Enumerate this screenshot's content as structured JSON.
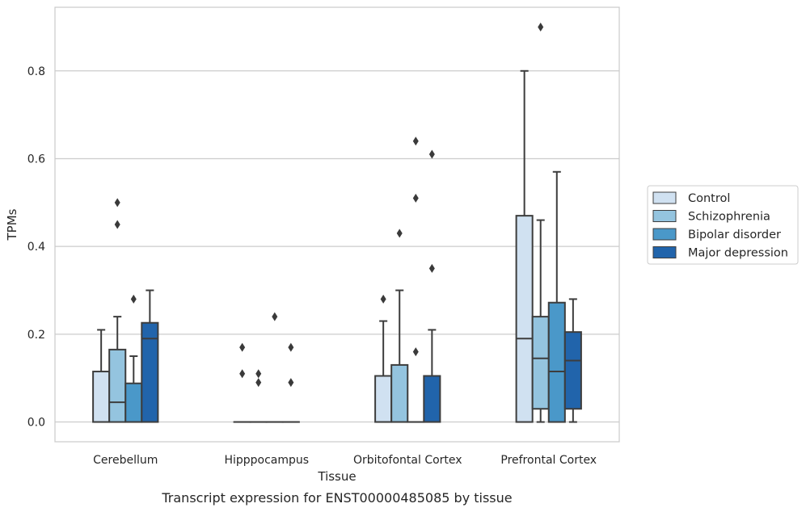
{
  "caption": "Transcript expression for ENST00000485085 by tissue",
  "chart_data": {
    "type": "box",
    "xlabel": "Tissue",
    "ylabel": "TPMs",
    "ylim": [
      -0.045,
      0.945
    ],
    "yticks": [
      0.0,
      0.2,
      0.4,
      0.6,
      0.8
    ],
    "ytick_labels": [
      "0.0",
      "0.2",
      "0.4",
      "0.6",
      "0.8"
    ],
    "grid": "horizontal",
    "legend_position": "right",
    "categories": [
      "Cerebellum",
      "Hipppocampus",
      "Orbitofontal Cortex",
      "Prefrontal Cortex"
    ],
    "series": [
      {
        "name": "Control",
        "color": "#d0e1f1",
        "boxes": [
          {
            "min": 0.0,
            "q1": 0.0,
            "median": 0.0,
            "q3": 0.115,
            "max": 0.21,
            "outliers": []
          },
          {
            "min": 0.0,
            "q1": 0.0,
            "median": 0.0,
            "q3": 0.0,
            "max": 0.0,
            "outliers": [
              0.17,
              0.11
            ]
          },
          {
            "min": 0.0,
            "q1": 0.0,
            "median": 0.0,
            "q3": 0.105,
            "max": 0.23,
            "outliers": [
              0.28
            ]
          },
          {
            "min": 0.0,
            "q1": 0.0,
            "median": 0.19,
            "q3": 0.47,
            "max": 0.8,
            "outliers": []
          }
        ]
      },
      {
        "name": "Schizophrenia",
        "color": "#94c4df",
        "boxes": [
          {
            "min": 0.0,
            "q1": 0.0,
            "median": 0.045,
            "q3": 0.165,
            "max": 0.24,
            "outliers": [
              0.5,
              0.45
            ]
          },
          {
            "min": 0.0,
            "q1": 0.0,
            "median": 0.0,
            "q3": 0.0,
            "max": 0.0,
            "outliers": [
              0.11,
              0.09
            ]
          },
          {
            "min": 0.0,
            "q1": 0.0,
            "median": 0.0,
            "q3": 0.13,
            "max": 0.3,
            "outliers": [
              0.43
            ]
          },
          {
            "min": 0.0,
            "q1": 0.03,
            "median": 0.145,
            "q3": 0.24,
            "max": 0.46,
            "outliers": [
              0.9
            ]
          }
        ]
      },
      {
        "name": "Bipolar disorder",
        "color": "#4a98c9",
        "boxes": [
          {
            "min": 0.0,
            "q1": 0.0,
            "median": 0.0,
            "q3": 0.088,
            "max": 0.15,
            "outliers": [
              0.28
            ]
          },
          {
            "min": 0.0,
            "q1": 0.0,
            "median": 0.0,
            "q3": 0.0,
            "max": 0.0,
            "outliers": [
              0.24
            ]
          },
          {
            "min": 0.0,
            "q1": 0.0,
            "median": 0.0,
            "q3": 0.0,
            "max": 0.0,
            "outliers": [
              0.64,
              0.51,
              0.16
            ]
          },
          {
            "min": 0.0,
            "q1": 0.0,
            "median": 0.115,
            "q3": 0.272,
            "max": 0.57,
            "outliers": []
          }
        ]
      },
      {
        "name": "Major depression",
        "color": "#2164ab",
        "boxes": [
          {
            "min": 0.0,
            "q1": 0.0,
            "median": 0.19,
            "q3": 0.226,
            "max": 0.3,
            "outliers": []
          },
          {
            "min": 0.0,
            "q1": 0.0,
            "median": 0.0,
            "q3": 0.0,
            "max": 0.0,
            "outliers": [
              0.17,
              0.09
            ]
          },
          {
            "min": 0.0,
            "q1": 0.0,
            "median": 0.0,
            "q3": 0.105,
            "max": 0.21,
            "outliers": [
              0.61,
              0.35
            ]
          },
          {
            "min": 0.0,
            "q1": 0.03,
            "median": 0.14,
            "q3": 0.205,
            "max": 0.28,
            "outliers": []
          }
        ]
      }
    ]
  }
}
